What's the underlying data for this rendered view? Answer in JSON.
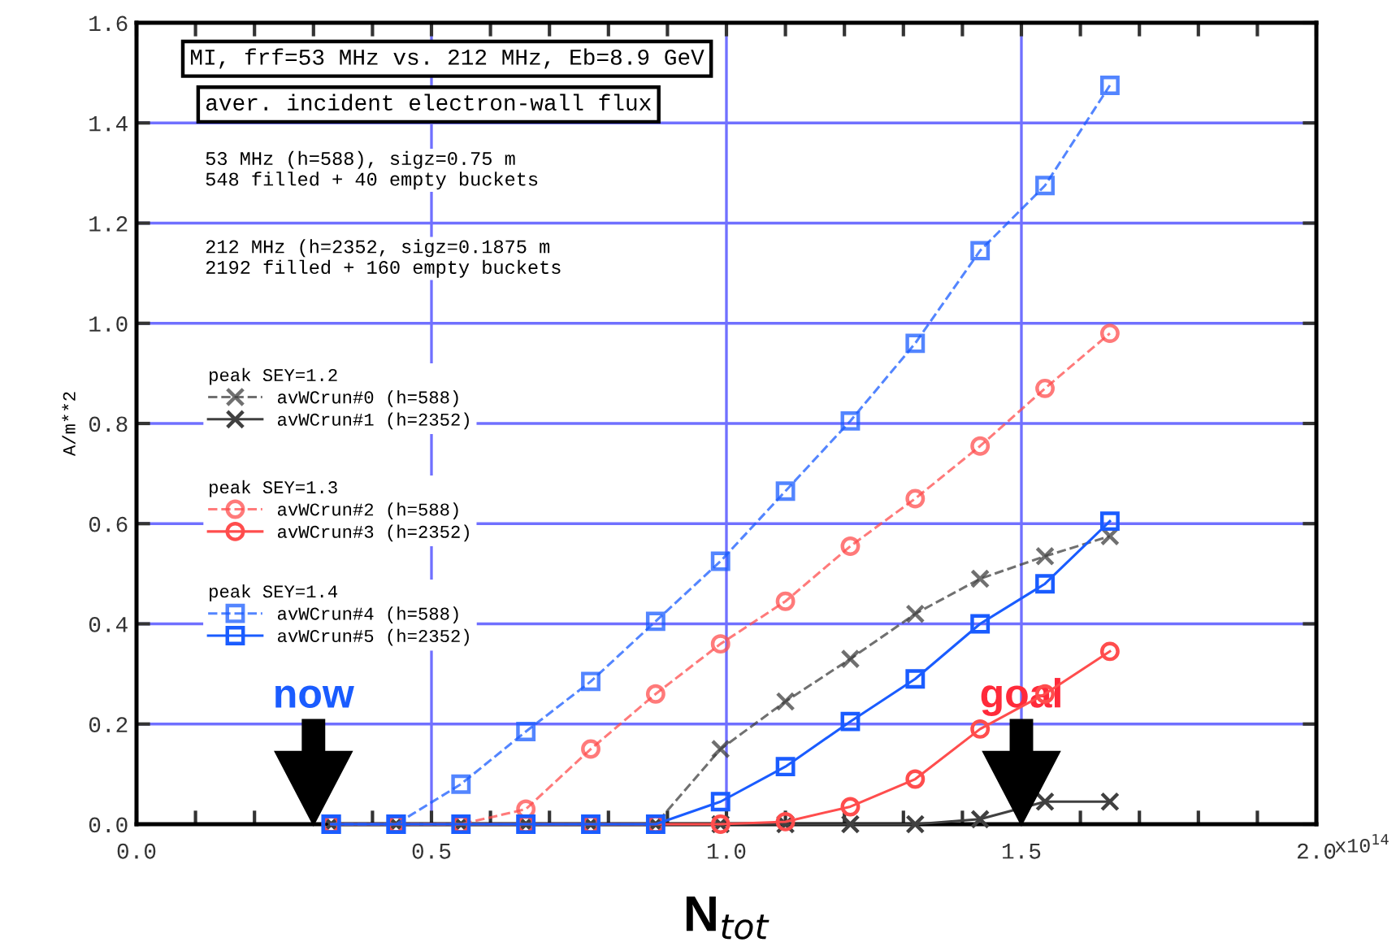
{
  "chart_data": {
    "type": "line",
    "title": "MI, frf=53 MHz vs. 212 MHz, Eb=8.9 GeV",
    "subtitle": "aver. incident electron-wall flux",
    "xlabel": "N$_{tot}$",
    "ylabel": "A/m**2",
    "x": [
      0.33,
      0.44,
      0.55,
      0.66,
      0.77,
      0.88,
      0.99,
      1.1,
      1.21,
      1.32,
      1.43,
      1.54,
      1.65
    ],
    "series": [
      {
        "name": "avWCrun#0 (h=588)",
        "color": "#404040",
        "line_style": "dashed",
        "marker": "cross",
        "values": [
          0,
          0,
          0,
          0,
          0,
          0,
          0.15,
          0.245,
          0.33,
          0.42,
          0.49,
          0.535,
          0.575
        ]
      },
      {
        "name": "avWCrun#1 (h=2352)",
        "color": "#404040",
        "line_style": "solid",
        "marker": "cross",
        "values": [
          0,
          0,
          0,
          0,
          0,
          0,
          0,
          0,
          0,
          0,
          0.01,
          0.045,
          0.045
        ]
      },
      {
        "name": "avWCrun#2 (h=588)",
        "color": "#ff4d4d",
        "line_style": "dashed",
        "marker": "circle",
        "values": [
          0,
          0,
          0,
          0.03,
          0.15,
          0.26,
          0.36,
          0.445,
          0.555,
          0.65,
          0.755,
          0.87,
          0.98
        ]
      },
      {
        "name": "avWCrun#3 (h=2352)",
        "color": "#ff4d4d",
        "line_style": "solid",
        "marker": "circle",
        "values": [
          0,
          0,
          0,
          0,
          0,
          0,
          0,
          0.005,
          0.035,
          0.09,
          0.19,
          0.26,
          0.345
        ]
      },
      {
        "name": "avWCrun#4 (h=588)",
        "color": "#1a5cff",
        "line_style": "dashed",
        "marker": "square",
        "values": [
          0,
          0,
          0.08,
          0.185,
          0.285,
          0.405,
          0.525,
          0.665,
          0.805,
          0.96,
          1.145,
          1.275,
          1.475
        ]
      },
      {
        "name": "avWCrun#5 (h=2352)",
        "color": "#1a5cff",
        "line_style": "solid",
        "marker": "square",
        "values": [
          0,
          0,
          0,
          0,
          0,
          0,
          0.045,
          0.115,
          0.205,
          0.29,
          0.4,
          0.48,
          0.605
        ]
      }
    ],
    "annotations": [
      "53 MHz (h=588), sigz=0.75 m\n548 filled + 40 empty buckets",
      "212 MHz (h=2352, sigz=0.1875 m\n2192 filled + 160 empty buckets",
      "peak SEY=1.2",
      "peak SEY=1.3",
      "peak SEY=1.4",
      "now",
      "goal",
      "x10$^{14}$"
    ],
    "xlim": [
      0,
      2.0
    ],
    "ylim": [
      0,
      1.6
    ],
    "xticks": [
      {
        "value": 0,
        "label": "0.0"
      },
      {
        "value": 0.1,
        "label": null
      },
      {
        "value": 0.2,
        "label": null
      },
      {
        "value": 0.3,
        "label": null
      },
      {
        "value": 0.4,
        "label": null
      },
      {
        "value": 0.5,
        "label": "0.5"
      },
      {
        "value": 0.6,
        "label": null
      },
      {
        "value": 0.7,
        "label": null
      },
      {
        "value": 0.8,
        "label": null
      },
      {
        "value": 0.9,
        "label": null
      },
      {
        "value": 1.0,
        "label": "1.0"
      },
      {
        "value": 1.1,
        "label": null
      },
      {
        "value": 1.2,
        "label": null
      },
      {
        "value": 1.3,
        "label": null
      },
      {
        "value": 1.4,
        "label": null
      },
      {
        "value": 1.5,
        "label": "1.5"
      },
      {
        "value": 1.6,
        "label": null
      },
      {
        "value": 1.7,
        "label": null
      },
      {
        "value": 1.8,
        "label": null
      },
      {
        "value": 1.9,
        "label": null
      },
      {
        "value": 2.0,
        "label": "2.0"
      }
    ],
    "yticks": [
      {
        "value": 0,
        "label": "0.0"
      },
      0.2,
      0.4,
      0.6,
      0.8,
      {
        "value": 1,
        "label": "1.0"
      },
      1.2,
      1.4,
      1.6
    ],
    "grid": true,
    "legend": "left"
  }
}
